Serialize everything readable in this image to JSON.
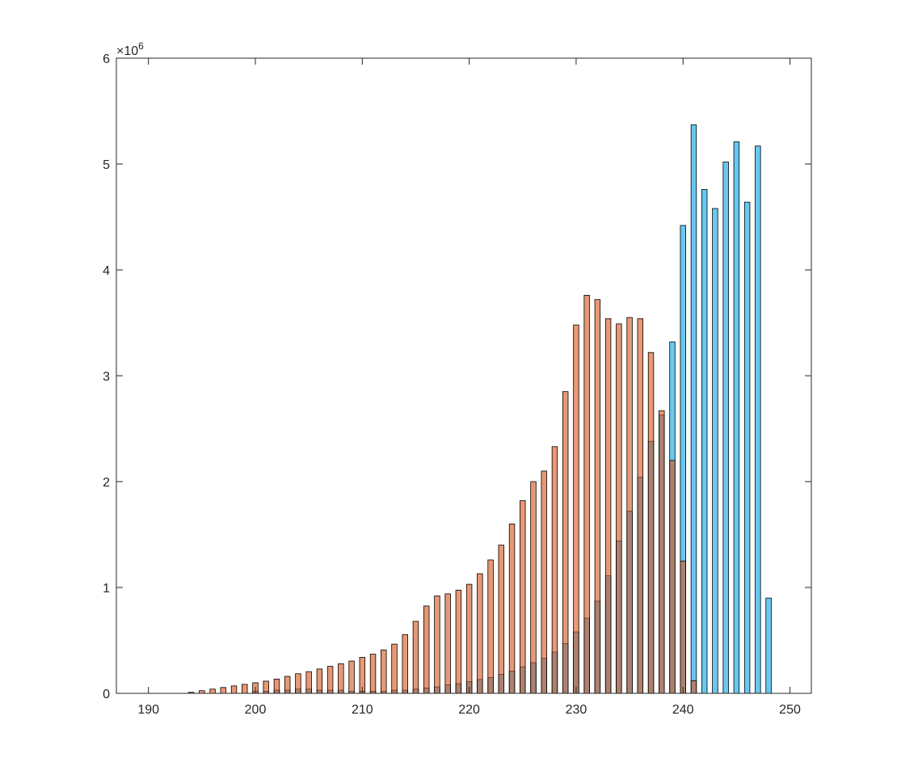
{
  "chart_data": {
    "type": "bar",
    "title": "",
    "xlabel": "",
    "ylabel": "",
    "xlim": [
      187,
      252
    ],
    "ylim": [
      0,
      6000000
    ],
    "x_ticks": [
      190,
      200,
      210,
      220,
      230,
      240,
      250
    ],
    "y_ticks": [
      0,
      1,
      2,
      3,
      4,
      5,
      6
    ],
    "y_exponent_base": "×10",
    "y_exponent_power": "6",
    "grid": false,
    "legend": "none",
    "series": [
      {
        "color": "#4DBEEE",
        "x": [
          194,
          195,
          196,
          197,
          198,
          199,
          200,
          201,
          202,
          203,
          204,
          205,
          206,
          207,
          208,
          209,
          210,
          211,
          212,
          213,
          214,
          215,
          216,
          217,
          218,
          219,
          220,
          221,
          222,
          223,
          224,
          225,
          226,
          227,
          228,
          229,
          230,
          231,
          232,
          233,
          234,
          235,
          236,
          237,
          238,
          239,
          240,
          241,
          242,
          243,
          244,
          245,
          246,
          247,
          248
        ],
        "values": [
          0,
          0,
          0,
          0,
          0,
          0,
          20000,
          20000,
          30000,
          30000,
          40000,
          40000,
          30000,
          30000,
          30000,
          20000,
          20000,
          20000,
          20000,
          30000,
          30000,
          40000,
          50000,
          60000,
          80000,
          90000,
          110000,
          130000,
          150000,
          180000,
          210000,
          250000,
          290000,
          330000,
          390000,
          470000,
          580000,
          710000,
          870000,
          1110000,
          1440000,
          1720000,
          2040000,
          2380000,
          2630000,
          3320000,
          4420000,
          5370000,
          4760000,
          4580000,
          5020000,
          5210000,
          4640000,
          5170000,
          900000
        ]
      },
      {
        "color": "#D95319",
        "x": [
          194,
          195,
          196,
          197,
          198,
          199,
          200,
          201,
          202,
          203,
          204,
          205,
          206,
          207,
          208,
          209,
          210,
          211,
          212,
          213,
          214,
          215,
          216,
          217,
          218,
          219,
          220,
          221,
          222,
          223,
          224,
          225,
          226,
          227,
          228,
          229,
          230,
          231,
          232,
          233,
          234,
          235,
          236,
          237,
          238,
          239,
          240,
          241
        ],
        "values": [
          10000,
          25000,
          40000,
          55000,
          70000,
          85000,
          100000,
          115000,
          135000,
          160000,
          185000,
          205000,
          230000,
          255000,
          280000,
          305000,
          340000,
          370000,
          410000,
          465000,
          555000,
          680000,
          825000,
          920000,
          940000,
          975000,
          1030000,
          1130000,
          1260000,
          1400000,
          1600000,
          1820000,
          2000000,
          2100000,
          2330000,
          2850000,
          3480000,
          3760000,
          3720000,
          3540000,
          3490000,
          3550000,
          3540000,
          3220000,
          2670000,
          2200000,
          1250000,
          120000
        ]
      }
    ]
  }
}
